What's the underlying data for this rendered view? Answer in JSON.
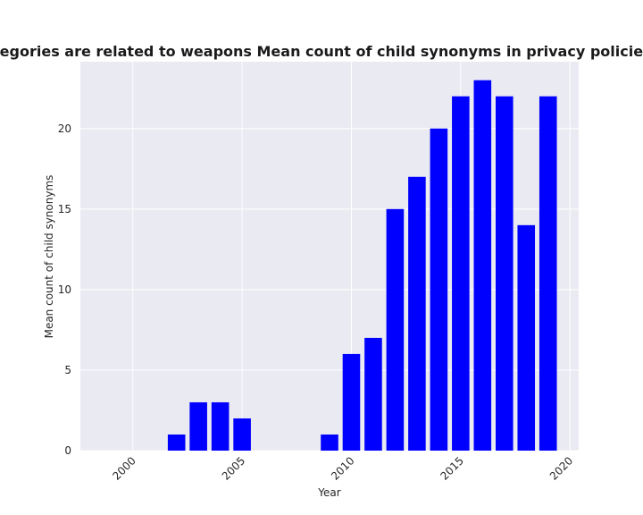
{
  "chart_data": {
    "type": "bar",
    "title": "when categories are related to weapons Mean count of child synonyms in privacy policies by Year",
    "xlabel": "Year",
    "ylabel": "Mean count of child synonyms",
    "x": [
      2002,
      2003,
      2004,
      2005,
      2009,
      2010,
      2011,
      2012,
      2013,
      2014,
      2015,
      2016,
      2017,
      2018,
      2019
    ],
    "values": [
      1,
      3,
      3,
      2,
      1,
      6,
      7,
      15,
      17,
      20,
      22,
      23,
      22,
      14,
      22
    ],
    "xlim": [
      1997.6,
      2020.4
    ],
    "ylim": [
      0,
      24.15
    ],
    "xticks": [
      "2000",
      "2005",
      "2010",
      "2015",
      "2020"
    ],
    "yticks": [
      "0",
      "5",
      "10",
      "15",
      "20"
    ],
    "bar_color": "#0000ff",
    "plot_background": "#eaeaf2",
    "grid": true
  }
}
